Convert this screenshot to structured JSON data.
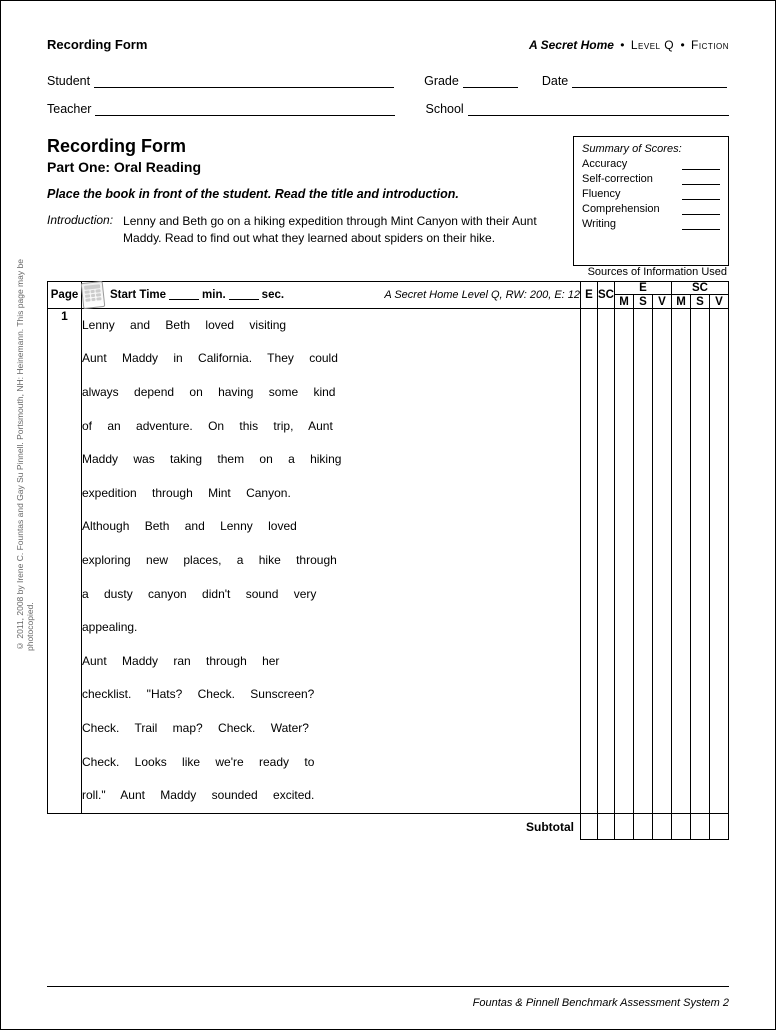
{
  "header": {
    "left_title": "Recording Form",
    "book_title": "A Secret Home",
    "level_label": "Level Q",
    "genre_label": "Fiction"
  },
  "fields": {
    "student_label": "Student",
    "grade_label": "Grade",
    "date_label": "Date",
    "teacher_label": "Teacher",
    "school_label": "School"
  },
  "section": {
    "title": "Recording Form",
    "subtitle": "Part One: Oral Reading",
    "instruction": "Place the book in front of the student. Read the title and introduction.",
    "intro_label": "Introduction:",
    "intro_text": "Lenny and Beth go on a hiking expedition through Mint Canyon with their Aunt Maddy. Read to find out what they learned about spiders on their hike."
  },
  "scores": {
    "title": "Summary of Scores:",
    "items": [
      "Accuracy",
      "Self-correction",
      "Fluency",
      "Comprehension",
      "Writing"
    ]
  },
  "table": {
    "sources_label": "Sources of Information Used",
    "page_header": "Page",
    "start_time_label": "Start Time",
    "min_label": "min.",
    "sec_label": "sec.",
    "book_info_title": "A Secret Home",
    "book_info_rest": " Level Q, RW: 200, E: 12",
    "e_label": "E",
    "sc_label": "SC",
    "m_label": "M",
    "s_label": "S",
    "v_label": "V",
    "page_number": "1",
    "subtotal_label": "Subtotal"
  },
  "reading_lines": [
    "Lenny and Beth loved visiting",
    "Aunt Maddy in California. They could",
    "always depend on having some kind",
    "of an adventure. On this trip, Aunt",
    "Maddy was taking them on a hiking",
    "expedition through Mint Canyon.",
    "Although Beth and Lenny loved",
    "exploring new places, a hike through",
    "a dusty canyon didn't sound very",
    "appealing.",
    "Aunt Maddy ran through her",
    "checklist. \"Hats? Check. Sunscreen?",
    "Check. Trail map? Check. Water?",
    "Check. Looks like we're ready to",
    "roll.\" Aunt Maddy sounded excited."
  ],
  "footer": "Fountas & Pinnell Benchmark Assessment System 2",
  "copyright": "© 2011, 2008 by Irene C. Fountas and Gay Su Pinnell. Portsmouth, NH: Heinemann. This page may be photocopied.",
  "style": {
    "font_family": "Arial, Helvetica, sans-serif",
    "text_color": "#000000",
    "background_color": "#ffffff",
    "border_color": "#000000",
    "muted_color": "#666666"
  }
}
